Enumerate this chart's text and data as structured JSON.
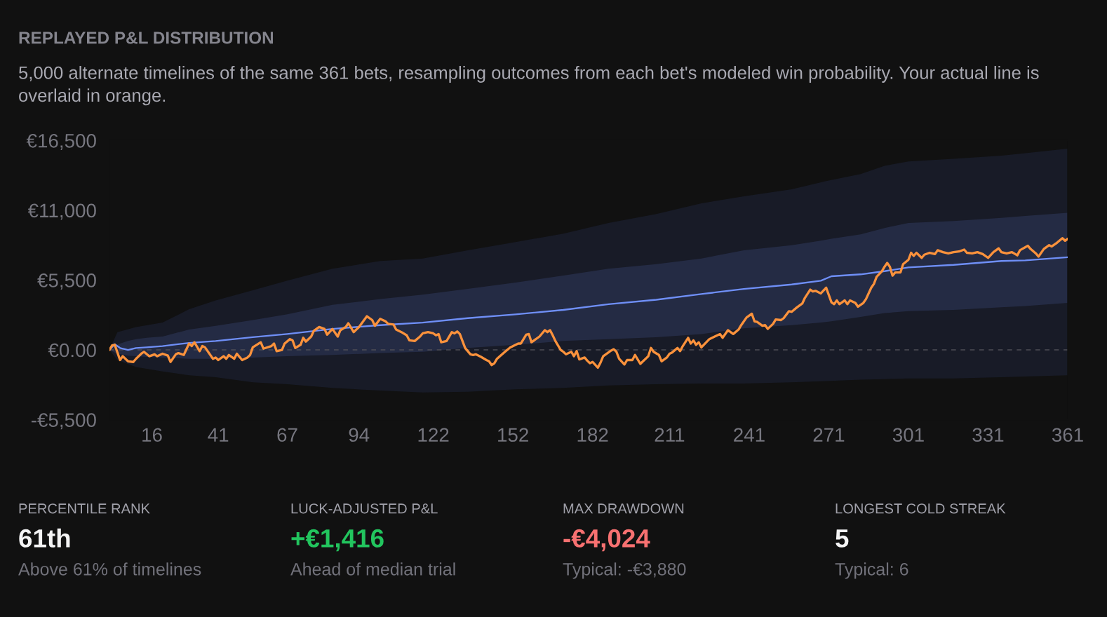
{
  "chart_data": [
    {
      "type": "line",
      "title": "REPLAYED P&L DISTRIBUTION",
      "subtitle": "5,000 alternate timelines of the same 361 bets, resampling outcomes from each bet's modeled win probability. Your actual line is overlaid in orange.",
      "xlim": [
        0,
        361
      ],
      "ylim": [
        -5500,
        16500
      ],
      "xticks": [
        16,
        41,
        67,
        94,
        122,
        152,
        182,
        211,
        241,
        271,
        301,
        331,
        361
      ],
      "yticks": [
        {
          "value": 16500,
          "label": "€16,500"
        },
        {
          "value": 11000,
          "label": "€11,000"
        },
        {
          "value": 5500,
          "label": "€5,500"
        },
        {
          "value": 0,
          "label": "€0.00"
        },
        {
          "value": -5500,
          "label": "-€5,500"
        }
      ],
      "ref_lines": [
        {
          "axis": "y",
          "value": 0,
          "color": "#4d4d55",
          "line_style": "dashed"
        }
      ],
      "series": [
        {
          "type": "line",
          "color": "#181b27",
          "x": [
            0,
            3,
            10,
            20,
            30,
            40,
            54,
            67,
            84,
            102,
            118,
            135,
            153,
            171,
            188,
            206,
            223,
            239,
            257,
            270,
            283,
            292,
            301,
            318,
            336,
            345,
            361
          ],
          "values": [
            null,
            null,
            null,
            null,
            null,
            null,
            null,
            null,
            null,
            null,
            null,
            null,
            null,
            null,
            null,
            null,
            null,
            null,
            null,
            null,
            null,
            null,
            null,
            null,
            null,
            null,
            null
          ],
          "lower": [
            0,
            -800,
            -1350,
            -1700,
            -2000,
            -2150,
            -2550,
            -2700,
            -3000,
            -3200,
            -3350,
            -3300,
            -3100,
            -3000,
            -2800,
            -2700,
            -2650,
            -2650,
            -2550,
            -2450,
            -2350,
            -2300,
            -2250,
            -2250,
            -2150,
            -2100,
            -2000
          ],
          "upper": [
            0,
            1400,
            1800,
            2150,
            3200,
            3900,
            4700,
            5450,
            6400,
            7000,
            7200,
            7850,
            8500,
            9150,
            10000,
            10700,
            11550,
            12100,
            12650,
            13300,
            13850,
            14500,
            14850,
            15050,
            15300,
            15500,
            15850
          ]
        },
        {
          "type": "line",
          "color": "#6f8ff7",
          "x": [
            0,
            2,
            4,
            7,
            10,
            14,
            20,
            30,
            40,
            54,
            67,
            84,
            102,
            118,
            135,
            153,
            171,
            188,
            206,
            223,
            239,
            257,
            268,
            272,
            283,
            292,
            301,
            318,
            336,
            345,
            361
          ],
          "values": [
            0,
            450,
            150,
            0,
            150,
            200,
            300,
            550,
            700,
            1000,
            1250,
            1650,
            1950,
            2150,
            2500,
            2800,
            3150,
            3600,
            3950,
            4400,
            4800,
            5150,
            5450,
            5800,
            5950,
            6200,
            6500,
            6700,
            7000,
            7050,
            7300
          ],
          "lower": [
            0,
            -200,
            -350,
            -450,
            -500,
            -550,
            -600,
            -700,
            -700,
            -600,
            -500,
            -400,
            -250,
            -150,
            150,
            400,
            700,
            850,
            1000,
            1250,
            1700,
            1950,
            2150,
            2250,
            2600,
            2900,
            3050,
            3150,
            3350,
            3450,
            3700
          ],
          "upper": [
            0,
            350,
            500,
            700,
            850,
            950,
            1050,
            1600,
            1900,
            2350,
            2800,
            3550,
            4000,
            4350,
            4800,
            5300,
            5850,
            6400,
            6750,
            7200,
            7850,
            8250,
            8600,
            8750,
            9100,
            9600,
            10000,
            10150,
            10400,
            10550,
            10800
          ]
        },
        {
          "type": "line",
          "color": "#fb923c",
          "x": [
            0,
            1,
            2,
            4,
            5,
            7,
            9,
            10,
            12,
            13,
            15,
            17,
            18,
            20,
            22,
            23,
            25,
            26,
            28,
            30,
            31,
            32,
            34,
            35,
            36,
            39,
            40,
            41,
            43,
            44,
            45,
            47,
            48,
            50,
            52,
            53,
            54,
            57,
            58,
            61,
            62,
            63,
            65,
            66,
            68,
            69,
            70,
            72,
            73,
            74,
            76,
            77,
            79,
            81,
            82,
            84,
            86,
            87,
            89,
            90,
            92,
            94,
            97,
            99,
            100,
            102,
            104,
            105,
            107,
            108,
            110,
            112,
            113,
            115,
            117,
            118,
            120,
            122,
            123,
            124,
            125,
            127,
            129,
            130,
            131,
            132,
            134,
            136,
            137,
            138,
            140,
            142,
            143,
            144,
            145,
            146,
            149,
            151,
            154,
            155,
            157,
            158,
            159,
            162,
            164,
            165,
            166,
            167,
            168,
            170,
            171,
            172,
            174,
            175,
            176,
            177,
            179,
            180,
            181,
            182,
            184,
            185,
            186,
            189,
            190,
            191,
            192,
            194,
            195,
            197,
            198,
            200,
            201,
            203,
            204,
            205,
            207,
            208,
            210,
            211,
            212,
            214,
            215,
            216,
            218,
            219,
            220,
            221,
            222,
            223,
            226,
            228,
            230,
            231,
            233,
            235,
            237,
            238,
            240,
            242,
            243,
            244,
            246,
            247,
            248,
            250,
            251,
            253,
            254,
            256,
            257,
            259,
            261,
            262,
            264,
            265,
            266,
            268,
            270,
            272,
            273,
            274,
            275,
            277,
            278,
            279,
            281,
            282,
            284,
            285,
            287,
            288,
            289,
            291,
            292,
            293,
            294,
            295,
            296,
            298,
            299,
            301,
            302,
            303,
            304,
            306,
            307,
            309,
            311,
            312,
            314,
            316,
            318,
            320,
            322,
            323,
            325,
            327,
            329,
            331,
            333,
            335,
            336,
            338,
            340,
            342,
            343,
            346,
            347,
            349,
            350,
            352,
            354,
            355,
            357,
            359,
            360,
            361
          ],
          "values": [
            0,
            350,
            400,
            -800,
            -500,
            -900,
            -950,
            -700,
            -300,
            -150,
            -500,
            -350,
            -500,
            -300,
            -450,
            -950,
            -350,
            -250,
            -400,
            500,
            300,
            600,
            -100,
            300,
            200,
            -700,
            -600,
            -800,
            -500,
            -700,
            -400,
            -700,
            -300,
            -800,
            -600,
            -400,
            200,
            600,
            100,
            300,
            500,
            -100,
            0,
            500,
            850,
            750,
            150,
            400,
            950,
            650,
            1050,
            1500,
            1800,
            1650,
            1200,
            1650,
            1050,
            1550,
            1800,
            2100,
            1400,
            1800,
            2650,
            2350,
            1900,
            2450,
            2250,
            2050,
            2000,
            1600,
            1400,
            1150,
            750,
            700,
            1050,
            1300,
            1400,
            1300,
            1150,
            1250,
            600,
            700,
            1400,
            1300,
            1450,
            1250,
            150,
            -350,
            -400,
            -350,
            -550,
            -800,
            -900,
            -1200,
            -1050,
            -700,
            -150,
            200,
            500,
            500,
            1200,
            1250,
            600,
            1050,
            1550,
            1400,
            1550,
            1150,
            700,
            0,
            -150,
            -350,
            -150,
            -500,
            -100,
            -750,
            -600,
            -850,
            -1050,
            -950,
            -1400,
            -1000,
            -500,
            -50,
            50,
            -150,
            -700,
            -1150,
            -800,
            -800,
            -400,
            -1100,
            -900,
            -500,
            150,
            -150,
            -400,
            -900,
            -600,
            -300,
            -200,
            150,
            -100,
            300,
            950,
            500,
            750,
            400,
            600,
            200,
            850,
            1050,
            1250,
            950,
            1550,
            1250,
            1600,
            1950,
            2550,
            2850,
            2250,
            2200,
            1900,
            1950,
            1650,
            2050,
            2400,
            2350,
            2500,
            3050,
            3000,
            3350,
            3650,
            4100,
            4750,
            4600,
            4650,
            4450,
            4900,
            3750,
            3600,
            3900,
            3600,
            3900,
            3600,
            3900,
            3700,
            3400,
            3700,
            4000,
            4900,
            5200,
            5750,
            6200,
            6550,
            6850,
            6550,
            5850,
            6100,
            6100,
            6750,
            7100,
            7650,
            7400,
            7650,
            7250,
            7500,
            7650,
            7550,
            7850,
            7700,
            7600,
            7700,
            7750,
            7900,
            7650,
            7600,
            7700,
            7550,
            7250,
            7700,
            8000,
            7700,
            7600,
            7700,
            7450,
            7850,
            8200,
            7950,
            7600,
            7350,
            7950,
            8250,
            8150,
            8450,
            8800,
            8600,
            8750
          ]
        }
      ]
    },
    {
      "type": "other",
      "title": "PERCENTILE RANK",
      "annotations": [
        "61th",
        "Above 61% of timelines"
      ],
      "color": "#f4f4f5"
    },
    {
      "type": "other",
      "title": "LUCK-ADJUSTED P&L",
      "annotations": [
        "+€1,416",
        "Ahead of median trial"
      ],
      "color": "#22c55e"
    },
    {
      "type": "other",
      "title": "MAX DRAWDOWN",
      "annotations": [
        "-€4,024",
        "Typical: -€3,880"
      ],
      "color": "#f87171"
    },
    {
      "type": "other",
      "title": "LONGEST COLD STREAK",
      "annotations": [
        "5",
        "Typical: 6"
      ],
      "color": "#f4f4f5"
    }
  ]
}
